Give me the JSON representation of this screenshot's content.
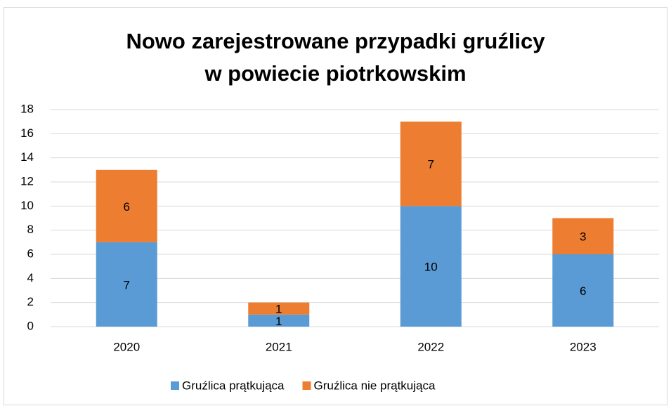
{
  "chart_data": {
    "type": "stacked_bar",
    "title": "Nowo zarejestrowane przypadki gruźlicy\nw powiecie piotrkowskim",
    "categories": [
      "2020",
      "2021",
      "2022",
      "2023"
    ],
    "series": [
      {
        "name": "Gruźlica prątkująca",
        "color": "#5b9bd5",
        "values": [
          7,
          1,
          10,
          6
        ]
      },
      {
        "name": "Gruźlica nie prątkująca",
        "color": "#ed7d31",
        "values": [
          6,
          1,
          7,
          3
        ]
      }
    ],
    "ylim": [
      0,
      18
    ],
    "yticks": [
      0,
      2,
      4,
      6,
      8,
      10,
      12,
      14,
      16,
      18
    ],
    "grid": true,
    "legend": "bottom"
  }
}
